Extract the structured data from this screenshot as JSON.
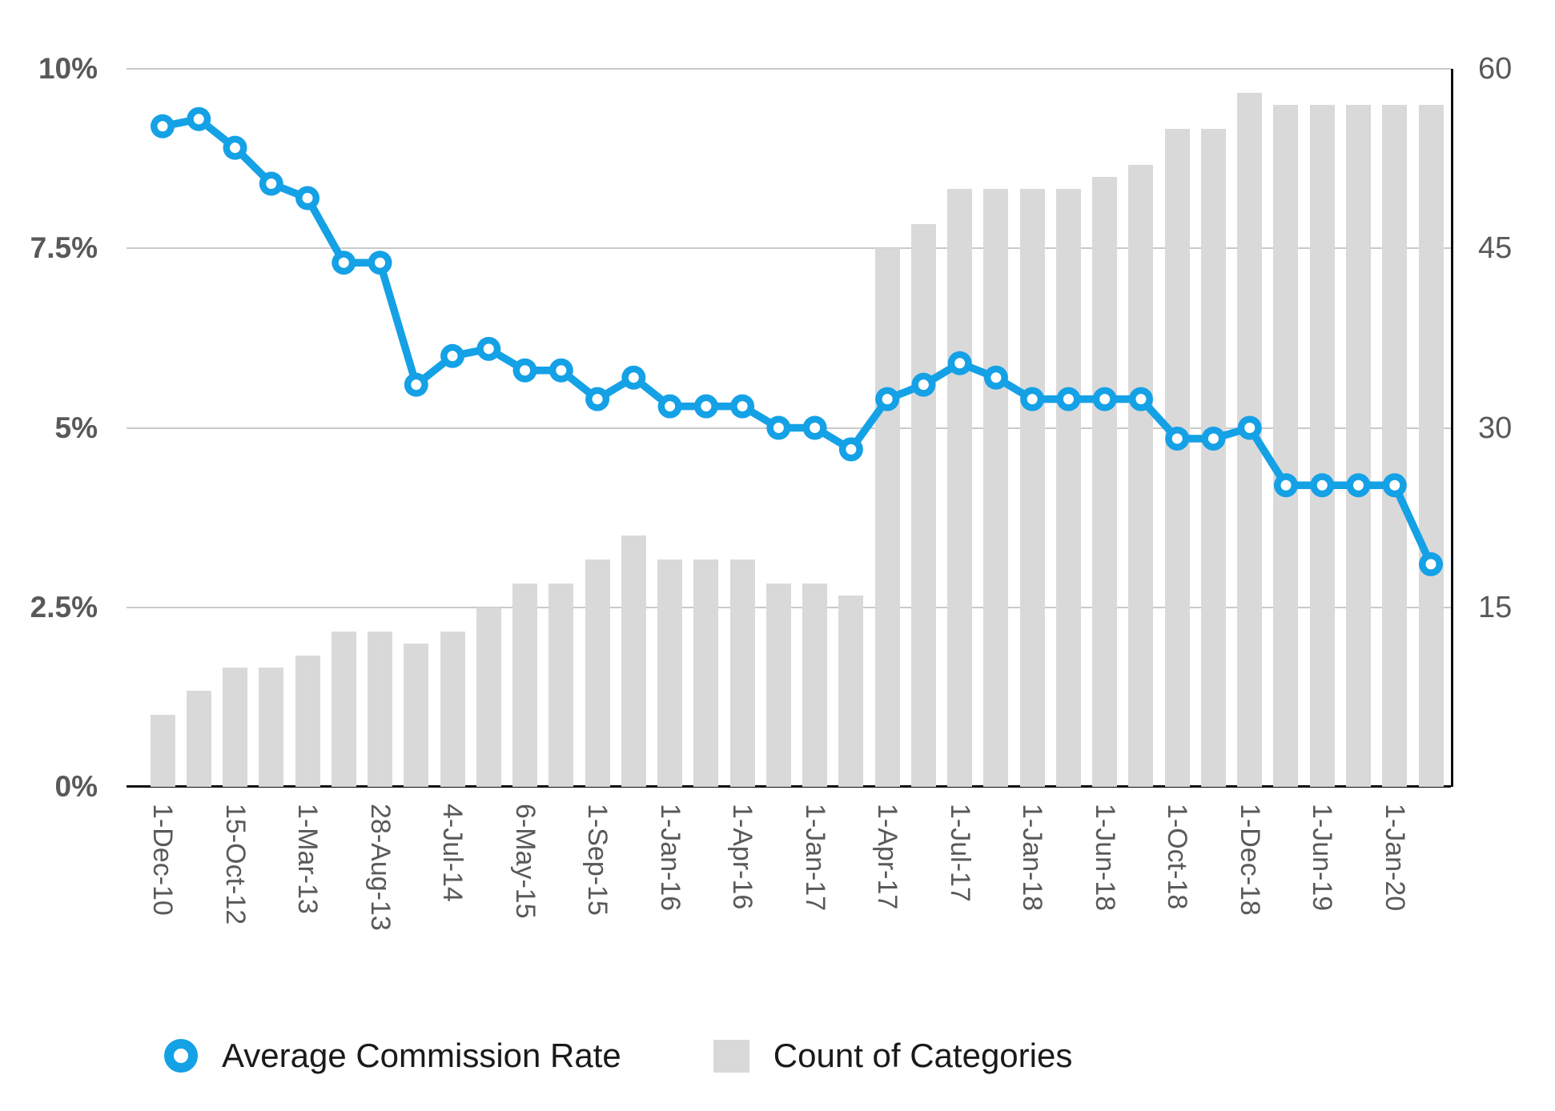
{
  "chart_data": {
    "type": "combo",
    "x_tick_labels": [
      "1-Dec-10",
      "15-Oct-12",
      "1-Mar-13",
      "28-Aug-13",
      "4-Jul-14",
      "6-May-15",
      "1-Sep-15",
      "1-Jan-16",
      "1-Apr-16",
      "1-Jan-17",
      "1-Apr-17",
      "1-Jul-17",
      "1-Jan-18",
      "1-Jun-18",
      "1-Oct-18",
      "1-Dec-18",
      "1-Jun-19",
      "1-Jan-20"
    ],
    "tick_every": 2,
    "point_count": 36,
    "series": [
      {
        "name": "Average Commission Rate",
        "type": "line",
        "axis": "left",
        "unit": "%",
        "color": "#14a1e6",
        "values": [
          9.2,
          9.3,
          8.9,
          8.4,
          8.2,
          7.3,
          7.3,
          5.6,
          6.0,
          6.1,
          5.8,
          5.8,
          5.4,
          5.7,
          5.3,
          5.3,
          5.3,
          5.0,
          5.0,
          4.7,
          5.4,
          5.6,
          5.9,
          5.7,
          5.4,
          5.4,
          5.4,
          5.4,
          4.85,
          4.85,
          5.0,
          4.2,
          4.2,
          4.2,
          4.2,
          3.1
        ]
      },
      {
        "name": "Count of Categories",
        "type": "bar",
        "axis": "right",
        "color": "#d9d9d9",
        "values": [
          6,
          8,
          10,
          10,
          11,
          13,
          13,
          12,
          13,
          15,
          17,
          17,
          19,
          21,
          19,
          19,
          19,
          17,
          17,
          16,
          45,
          47,
          50,
          50,
          50,
          50,
          51,
          52,
          55,
          55,
          58,
          57,
          57,
          57,
          57,
          57
        ]
      }
    ],
    "left_axis": {
      "max": 10,
      "ticks": [
        {
          "label": "0%",
          "value": 0
        },
        {
          "label": "2.5%",
          "value": 2.5
        },
        {
          "label": "5%",
          "value": 5
        },
        {
          "label": "7.5%",
          "value": 7.5
        },
        {
          "label": "10%",
          "value": 10
        }
      ]
    },
    "right_axis": {
      "max": 60,
      "ticks": [
        {
          "label": "15",
          "value": 15
        },
        {
          "label": "30",
          "value": 30
        },
        {
          "label": "45",
          "value": 45
        },
        {
          "label": "60",
          "value": 60
        }
      ]
    },
    "grid": true,
    "legend_position": "bottom"
  },
  "legend": {
    "items": [
      {
        "label": "Average Commission Rate",
        "marker": "circle-line-marker"
      },
      {
        "label": "Count of Categories",
        "marker": "bar-swatch"
      }
    ]
  },
  "colors": {
    "line": "#14a1e6",
    "bar_fill": "#d9d9d9",
    "gridline": "#c9c9c9",
    "axis_line": "#0d0d0d",
    "tick_text": "#595959",
    "legend_text": "#1a1a1a"
  }
}
